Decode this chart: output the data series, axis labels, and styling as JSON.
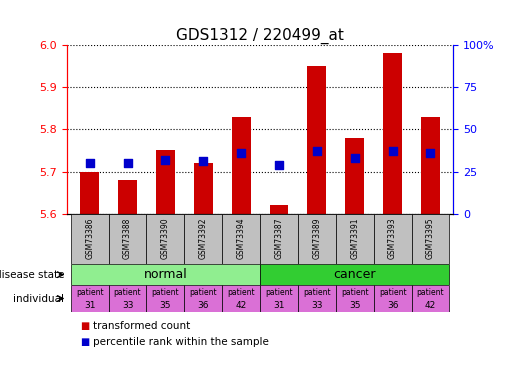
{
  "title": "GDS1312 / 220499_at",
  "samples": [
    "GSM73386",
    "GSM73388",
    "GSM73390",
    "GSM73392",
    "GSM73394",
    "GSM73387",
    "GSM73389",
    "GSM73391",
    "GSM73393",
    "GSM73395"
  ],
  "transformed_count": [
    5.7,
    5.68,
    5.75,
    5.72,
    5.83,
    5.62,
    5.95,
    5.78,
    5.98,
    5.83
  ],
  "percentile_rank": [
    30,
    30,
    32,
    31,
    36,
    29,
    37,
    33,
    37,
    36
  ],
  "ylim": [
    5.6,
    6.0
  ],
  "yticks": [
    5.6,
    5.7,
    5.8,
    5.9,
    6.0
  ],
  "right_ytick_vals": [
    0,
    25,
    50,
    75,
    100
  ],
  "right_ytick_labels": [
    "0",
    "25",
    "50",
    "75",
    "100%"
  ],
  "bar_color": "#cc0000",
  "dot_color": "#0000cc",
  "bar_width": 0.5,
  "normal_bg": "#90ee90",
  "cancer_bg": "#32cd32",
  "sample_bg": "#c0c0c0",
  "individual_bg": "#da70d6",
  "ind_numbers": [
    "31",
    "33",
    "35",
    "36",
    "42",
    "31",
    "33",
    "35",
    "36",
    "42"
  ],
  "legend_red_label": "transformed count",
  "legend_blue_label": "percentile rank within the sample"
}
